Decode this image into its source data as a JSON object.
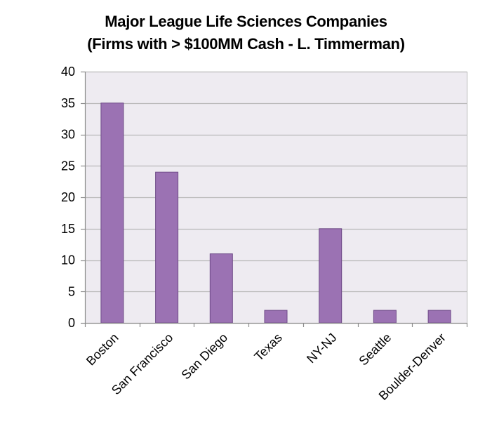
{
  "chart_data": {
    "type": "bar",
    "title_line1": "Major League Life Sciences Companies",
    "title_line2": "(Firms with > $100MM Cash - L. Timmerman)",
    "categories": [
      "Boston",
      "San Francisco",
      "San Diego",
      "Texas",
      "NY-NJ",
      "Seattle",
      "Boulder-Denver"
    ],
    "values": [
      35,
      24,
      11,
      2,
      15,
      2,
      2
    ],
    "xlabel": "",
    "ylabel": "",
    "ylim": [
      0,
      40
    ],
    "yticks": [
      0,
      5,
      10,
      15,
      20,
      25,
      30,
      35,
      40
    ],
    "grid": true,
    "legend": "none"
  },
  "colors": {
    "bar_fill": "#9b72b3",
    "bar_stroke": "#6e4a87",
    "plot_bg": "#eeebf1",
    "grid": "#b9b9b9",
    "axis": "#8c8c8c"
  }
}
